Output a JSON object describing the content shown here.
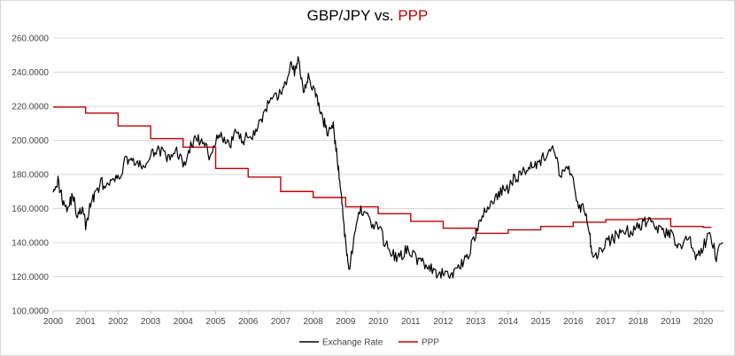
{
  "chart_data": {
    "type": "line",
    "title_main": "GBP/JPY vs.",
    "title_accent": "PPP",
    "xlabel": "",
    "ylabel": "",
    "xlim": [
      2000,
      2020.65
    ],
    "ylim": [
      100,
      260
    ],
    "x_ticks": [
      "2000",
      "2001",
      "2002",
      "2003",
      "2004",
      "2005",
      "2006",
      "2007",
      "2008",
      "2009",
      "2010",
      "2011",
      "2012",
      "2013",
      "2014",
      "2015",
      "2016",
      "2017",
      "2018",
      "2019",
      "2020"
    ],
    "y_ticks": [
      "100.0000",
      "120.0000",
      "140.0000",
      "160.0000",
      "180.0000",
      "200.0000",
      "220.0000",
      "240.0000",
      "260.0000"
    ],
    "grid": true,
    "legend_position": "bottom",
    "series": [
      {
        "name": "Exchange Rate",
        "color": "#000000",
        "x": [
          2000.0,
          2000.15,
          2000.3,
          2000.45,
          2000.6,
          2000.75,
          2000.9,
          2001.0,
          2001.15,
          2001.3,
          2001.5,
          2001.7,
          2001.9,
          2002.0,
          2002.2,
          2002.4,
          2002.6,
          2002.8,
          2003.0,
          2003.2,
          2003.4,
          2003.6,
          2003.8,
          2004.0,
          2004.2,
          2004.4,
          2004.6,
          2004.8,
          2005.0,
          2005.2,
          2005.4,
          2005.6,
          2005.8,
          2006.0,
          2006.2,
          2006.4,
          2006.6,
          2006.8,
          2007.0,
          2007.15,
          2007.3,
          2007.45,
          2007.55,
          2007.7,
          2007.85,
          2008.0,
          2008.15,
          2008.3,
          2008.45,
          2008.6,
          2008.7,
          2008.8,
          2008.9,
          2009.0,
          2009.1,
          2009.25,
          2009.4,
          2009.6,
          2009.8,
          2010.0,
          2010.2,
          2010.4,
          2010.6,
          2010.8,
          2011.0,
          2011.2,
          2011.4,
          2011.6,
          2011.8,
          2012.0,
          2012.2,
          2012.4,
          2012.6,
          2012.8,
          2013.0,
          2013.2,
          2013.4,
          2013.6,
          2013.8,
          2014.0,
          2014.2,
          2014.4,
          2014.6,
          2014.8,
          2015.0,
          2015.2,
          2015.4,
          2015.6,
          2015.8,
          2016.0,
          2016.2,
          2016.35,
          2016.5,
          2016.6,
          2016.8,
          2017.0,
          2017.2,
          2017.4,
          2017.6,
          2017.8,
          2018.0,
          2018.2,
          2018.4,
          2018.6,
          2018.8,
          2019.0,
          2019.2,
          2019.4,
          2019.6,
          2019.8,
          2020.0,
          2020.2,
          2020.4,
          2020.6
        ],
        "values": [
          173,
          176,
          165,
          160,
          168,
          155,
          160,
          150,
          162,
          170,
          175,
          172,
          178,
          176,
          188,
          190,
          185,
          185,
          190,
          196,
          192,
          188,
          195,
          185,
          195,
          202,
          198,
          192,
          200,
          202,
          196,
          205,
          200,
          202,
          205,
          212,
          220,
          224,
          228,
          232,
          245,
          240,
          248,
          230,
          238,
          230,
          222,
          212,
          205,
          210,
          195,
          180,
          160,
          140,
          125,
          140,
          158,
          160,
          150,
          150,
          140,
          135,
          130,
          135,
          135,
          130,
          128,
          125,
          120,
          122,
          120,
          125,
          128,
          135,
          145,
          155,
          162,
          166,
          170,
          172,
          178,
          180,
          185,
          186,
          188,
          192,
          194,
          180,
          185,
          175,
          160,
          160,
          145,
          130,
          135,
          140,
          142,
          145,
          148,
          145,
          150,
          152,
          155,
          148,
          145,
          145,
          138,
          140,
          142,
          130,
          138,
          145,
          132,
          140
        ],
        "precision": 0
      },
      {
        "name": "PPP",
        "color": "#c00000",
        "steps": [
          [
            2000.0,
            219.5
          ],
          [
            2001.0,
            216
          ],
          [
            2002.0,
            208.5
          ],
          [
            2003.0,
            201
          ],
          [
            2004.0,
            196
          ],
          [
            2005.0,
            183.5
          ],
          [
            2006.0,
            178.5
          ],
          [
            2007.0,
            170
          ],
          [
            2008.0,
            166.5
          ],
          [
            2009.0,
            161
          ],
          [
            2010.0,
            157
          ],
          [
            2011.0,
            152.5
          ],
          [
            2012.0,
            148.5
          ],
          [
            2013.0,
            145.5
          ],
          [
            2014.0,
            147.5
          ],
          [
            2015.0,
            149.5
          ],
          [
            2016.0,
            152
          ],
          [
            2017.0,
            153.5
          ],
          [
            2018.0,
            154
          ],
          [
            2019.0,
            149.5
          ],
          [
            2020.0,
            149
          ]
        ],
        "end_x": 2020.25
      }
    ]
  }
}
